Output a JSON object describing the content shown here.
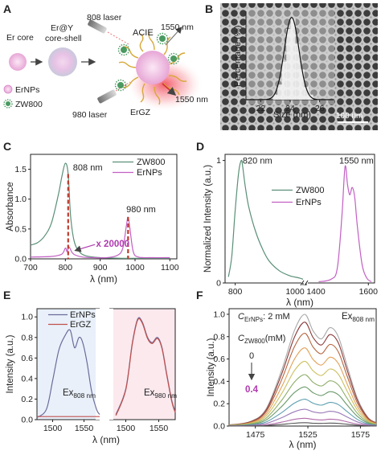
{
  "panels": [
    {
      "key": "A",
      "label": "A"
    },
    {
      "key": "B",
      "label": "B"
    },
    {
      "key": "C",
      "label": "C"
    },
    {
      "key": "D",
      "label": "D"
    },
    {
      "key": "E",
      "label": "E"
    },
    {
      "key": "F",
      "label": "F"
    }
  ],
  "schematic": {
    "er_core": "Er core",
    "core_shell_line1": "Er@Y",
    "core_shell_line2": "core-shell",
    "laser_808": "808 laser",
    "laser_980": "980 laser",
    "acie": "ACIE",
    "emission_top": "1550 nm",
    "emission_bottom": "1550 nm",
    "ergz": "ErGZ",
    "legend_ernps": "ErNPs",
    "legend_zw800": "ZW800"
  },
  "colors": {
    "zw800_line": "#5a8f77",
    "ernps_line": "#c25fc4",
    "ergz_line": "#c0504d",
    "dashed_marker": "#c0392b",
    "annotation_purple": "#b03ab0",
    "panel_e_left_bg": "#e9f0fa",
    "panel_e_right_bg": "#fbe9ee"
  },
  "chart_data": [
    {
      "panel": "B",
      "type": "tem_image_with_histogram",
      "ylabel": "Percentage (%)",
      "xlabel": "Size (nm)",
      "xticks": [
        "22",
        "24",
        "26"
      ],
      "xlim": [
        21,
        27
      ],
      "histogram_x": [
        23.0,
        23.3,
        23.6,
        23.9,
        24.2,
        24.5,
        24.8,
        25.1,
        25.4
      ],
      "histogram_y": [
        2,
        6,
        15,
        28,
        32,
        22,
        12,
        5,
        2
      ],
      "gaussian_center": 24.1,
      "gaussian_sigma": 0.5,
      "ymax": 35,
      "scale_bar": "100 nm"
    },
    {
      "panel": "C",
      "type": "line",
      "ylabel": "Absorbance",
      "xlabel": "λ (nm)",
      "xticks": [
        "700",
        "800",
        "900",
        "1000",
        "1100"
      ],
      "yticks": [
        "0.0",
        "0.5",
        "1.0",
        "1.5"
      ],
      "xlim": [
        700,
        1120
      ],
      "ylim": [
        0,
        1.75
      ],
      "legend": [
        "ZW800",
        "ErNPs"
      ],
      "peak_labels": [
        "808 nm",
        "980 nm"
      ],
      "annotation": "x 20000",
      "series": [
        {
          "name": "ZW800",
          "x": [
            700,
            720,
            740,
            760,
            780,
            790,
            800,
            808,
            815,
            825,
            840,
            860,
            900,
            960,
            1000,
            1050,
            1100
          ],
          "y": [
            0.23,
            0.27,
            0.38,
            0.6,
            1.08,
            1.38,
            1.6,
            1.42,
            0.72,
            0.3,
            0.12,
            0.05,
            0.02,
            0.01,
            0.01,
            0.01,
            0.01
          ]
        },
        {
          "name": "ErNPs",
          "x": [
            700,
            760,
            790,
            800,
            805,
            810,
            820,
            830,
            850,
            880,
            920,
            950,
            965,
            975,
            980,
            985,
            995,
            1010,
            1050,
            1100
          ],
          "y": [
            0.03,
            0.04,
            0.08,
            0.18,
            0.12,
            0.2,
            0.1,
            0.06,
            0.03,
            0.02,
            0.02,
            0.06,
            0.18,
            0.55,
            0.7,
            0.52,
            0.12,
            0.03,
            0.02,
            0.02
          ]
        }
      ]
    },
    {
      "panel": "D",
      "type": "line",
      "ylabel": "Normalized Intensity (a.u.)",
      "xlabel": "λ (nm)",
      "xticks": [
        "800",
        "1000",
        "1400",
        "1600"
      ],
      "yticks": [
        "0",
        "1"
      ],
      "ylim": [
        0,
        1.05
      ],
      "legend": [
        "ZW800",
        "ErNPs"
      ],
      "peak_labels": [
        "820 nm",
        "1550 nm"
      ],
      "series": [
        {
          "name": "ZW800",
          "x": [
            780,
            790,
            800,
            810,
            818,
            822,
            830,
            840,
            860,
            880,
            900,
            930,
            960,
            990,
            1000
          ],
          "y": [
            0.05,
            0.22,
            0.6,
            0.9,
            1.0,
            0.95,
            0.78,
            0.62,
            0.42,
            0.28,
            0.18,
            0.1,
            0.06,
            0.04,
            0.03
          ]
        },
        {
          "name": "ErNPs",
          "x": [
            1440,
            1480,
            1500,
            1515,
            1525,
            1533,
            1540,
            1548,
            1556,
            1565,
            1580,
            1595,
            1610
          ],
          "y": [
            0.01,
            0.03,
            0.12,
            0.55,
            0.95,
            0.8,
            0.72,
            0.78,
            0.7,
            0.45,
            0.15,
            0.04,
            0.01
          ]
        }
      ]
    },
    {
      "panel": "E",
      "type": "line",
      "ylabel": "Intensity (a.u.)",
      "xlabel": "λ (nm)",
      "yticks": [
        "0.0",
        "0.2",
        "0.4",
        "0.6",
        "0.8",
        "1.0"
      ],
      "ylim": [
        0,
        1.08
      ],
      "legend": [
        "ErNPs",
        "ErGZ"
      ],
      "subplots": [
        {
          "excitation": "Ex",
          "excitation_sub": "808 nm",
          "xticks": [
            "1500",
            "1550"
          ],
          "xlim": [
            1475,
            1575
          ],
          "series": [
            {
              "name": "ErNPs",
              "x": [
                1475,
                1490,
                1500,
                1510,
                1520,
                1528,
                1535,
                1542,
                1548,
                1555,
                1562,
                1570,
                1575
              ],
              "y": [
                0.02,
                0.1,
                0.38,
                0.68,
                0.82,
                0.87,
                0.7,
                0.8,
                0.75,
                0.55,
                0.28,
                0.1,
                0.05
              ]
            },
            {
              "name": "ErGZ",
              "x": [
                1475,
                1575
              ],
              "y": [
                0.03,
                0.03
              ]
            }
          ]
        },
        {
          "excitation": "Ex",
          "excitation_sub": "980 nm",
          "xticks": [
            "1500",
            "1550"
          ],
          "xlim": [
            1475,
            1575
          ],
          "series": [
            {
              "name": "ErNPs",
              "x": [
                1485,
                1500,
                1510,
                1518,
                1525,
                1533,
                1540,
                1548,
                1555,
                1562,
                1570,
                1575
              ],
              "y": [
                0.05,
                0.3,
                0.75,
                0.98,
                0.95,
                0.8,
                0.75,
                0.8,
                0.7,
                0.45,
                0.18,
                0.08
              ]
            },
            {
              "name": "ErGZ",
              "x": [
                1485,
                1500,
                1510,
                1518,
                1525,
                1533,
                1540,
                1548,
                1555,
                1562,
                1570,
                1575
              ],
              "y": [
                0.04,
                0.29,
                0.74,
                0.97,
                0.94,
                0.79,
                0.74,
                0.79,
                0.69,
                0.44,
                0.17,
                0.07
              ]
            }
          ]
        }
      ]
    },
    {
      "panel": "F",
      "type": "line",
      "ylabel": "Intensity (a.u.)",
      "xlabel": "λ (nm)",
      "xticks": [
        "1475",
        "1525",
        "1575"
      ],
      "yticks": [
        "0.0",
        "0.2",
        "0.4",
        "0.6",
        "0.8",
        "1.0"
      ],
      "xlim": [
        1450,
        1590
      ],
      "ylim": [
        0,
        1.05
      ],
      "annotation_conc_label": "C",
      "annotation_conc_sub": "ErNPs",
      "annotation_conc_value": ": 2 mM",
      "annotation_zw_label": "C",
      "annotation_zw_sub": "ZW800",
      "annotation_zw_unit": "(mM)",
      "annotation_start": "0",
      "annotation_end": "0.4",
      "excitation": "Ex",
      "excitation_sub": "808 nm",
      "series_scales": [
        1.0,
        0.93,
        0.83,
        0.7,
        0.58,
        0.46,
        0.35,
        0.24,
        0.15,
        0.07,
        0.03
      ],
      "series_colors": [
        "#a9a9a9",
        "#8b3a3a",
        "#b5653f",
        "#e2a35a",
        "#ccc060",
        "#8fae6a",
        "#6a9a6a",
        "#5e9fb0",
        "#9a7bb8",
        "#b06aa8",
        "#555555"
      ],
      "base_x": [
        1450,
        1470,
        1485,
        1500,
        1512,
        1522,
        1530,
        1538,
        1546,
        1554,
        1562,
        1572,
        1582,
        1590
      ],
      "base_y": [
        0.01,
        0.04,
        0.15,
        0.5,
        0.85,
        1.0,
        0.85,
        0.78,
        0.88,
        0.8,
        0.55,
        0.25,
        0.08,
        0.03
      ]
    }
  ]
}
